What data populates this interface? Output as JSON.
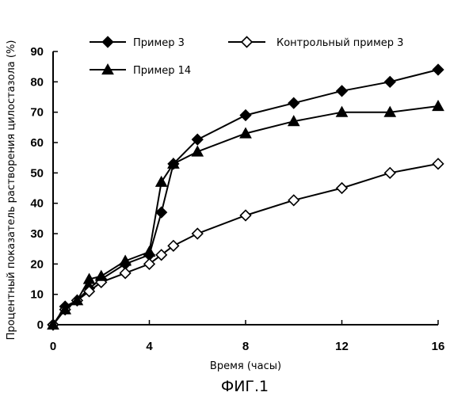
{
  "chart_data": {
    "type": "line",
    "xlabel": "Время (часы)",
    "ylabel": "Процентный показатель растворения цилостазола (%)",
    "xlim": [
      0,
      16
    ],
    "ylim": [
      0,
      90
    ],
    "x_ticks": [
      "0",
      "4",
      "8",
      "12",
      "16"
    ],
    "y_ticks": [
      "0",
      "10",
      "20",
      "30",
      "40",
      "50",
      "60",
      "70",
      "80",
      "90"
    ],
    "grid": false,
    "legend_position": "top",
    "caption": "ФИГ.1",
    "series": [
      {
        "name": "Пример  3",
        "marker": "diamond-filled",
        "x": [
          0,
          0.5,
          1,
          1.5,
          2,
          3,
          4,
          4.5,
          5,
          6,
          8,
          10,
          12,
          14,
          16
        ],
        "y": [
          0,
          6,
          8,
          12,
          15,
          20,
          23,
          37,
          53,
          61,
          69,
          73,
          77,
          80,
          84
        ]
      },
      {
        "name": "Контрольный пример  3",
        "marker": "diamond-open",
        "x": [
          0,
          0.5,
          1,
          1.5,
          2,
          3,
          4,
          4.5,
          5,
          6,
          8,
          10,
          12,
          14,
          16
        ],
        "y": [
          0,
          5,
          8,
          11,
          14,
          17,
          20,
          23,
          26,
          30,
          36,
          41,
          45,
          50,
          53
        ]
      },
      {
        "name": "Пример 14",
        "marker": "triangle-filled",
        "x": [
          0,
          0.5,
          1,
          1.5,
          2,
          3,
          4,
          4.5,
          5,
          6,
          8,
          10,
          12,
          14,
          16
        ],
        "y": [
          0,
          5,
          8,
          15,
          16,
          21,
          24,
          47,
          53,
          57,
          63,
          67,
          70,
          70,
          72
        ]
      }
    ]
  }
}
